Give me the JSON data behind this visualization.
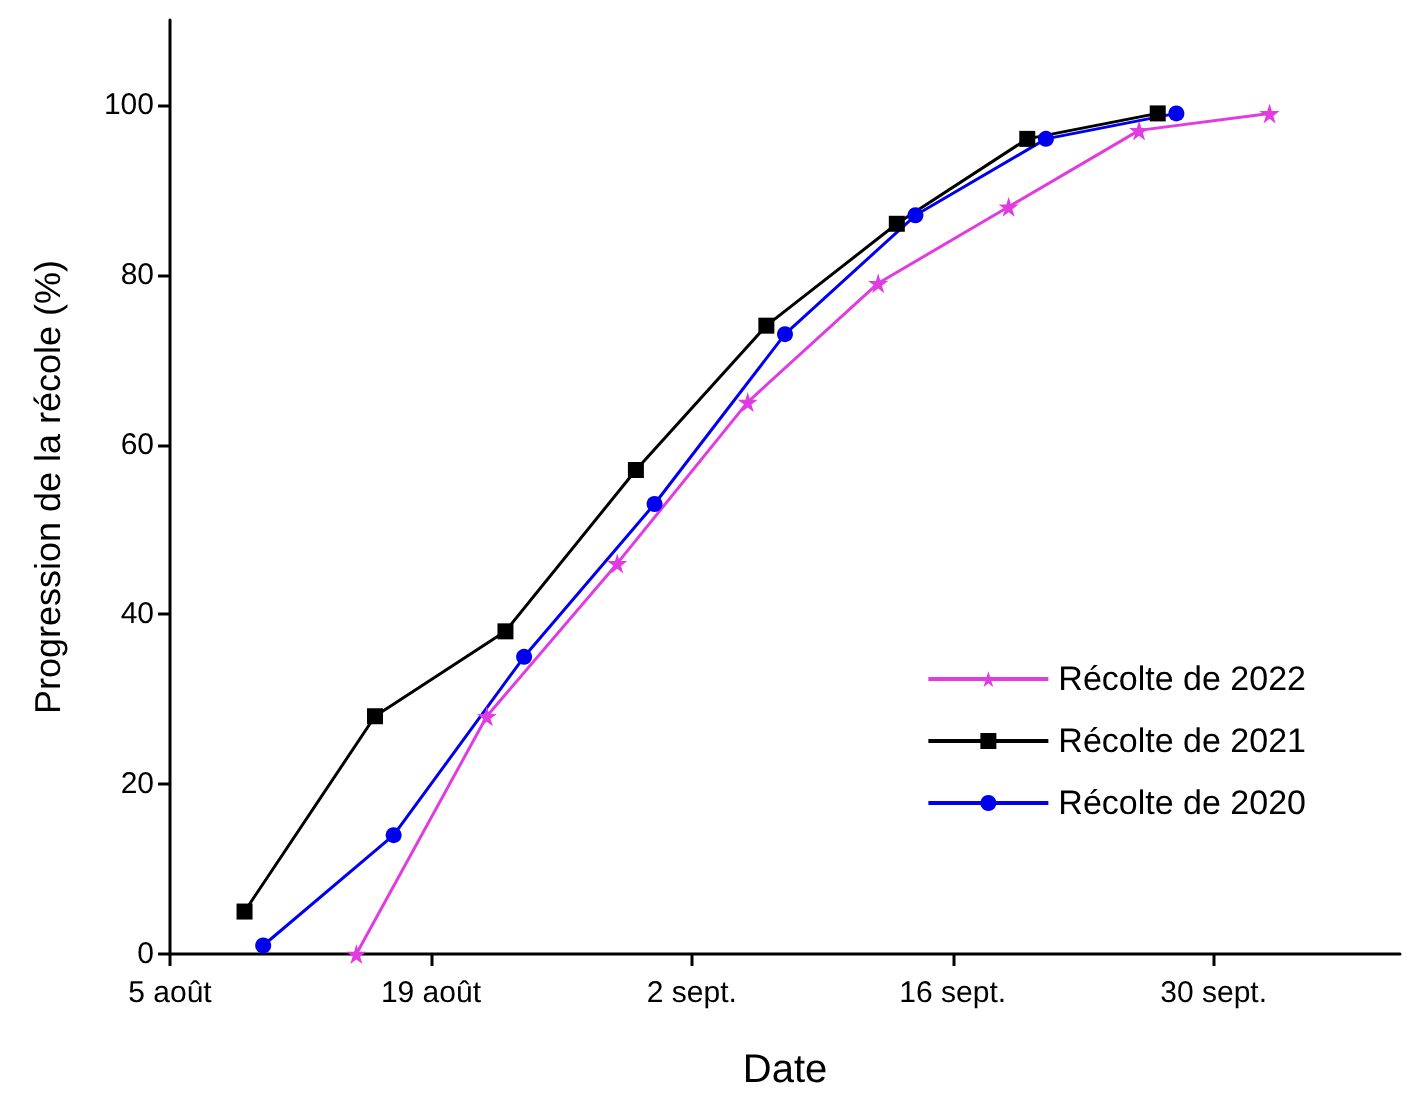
{
  "chart_data": {
    "type": "line",
    "xlabel": "Date",
    "ylabel": "Progression de la récole (%)",
    "xlim": [
      "--08-05",
      "--10-10"
    ],
    "xticks": [
      {
        "value": "--08-05",
        "label": "5 août"
      },
      {
        "value": "--08-19",
        "label": "19 août"
      },
      {
        "value": "--09-02",
        "label": "2 sept."
      },
      {
        "value": "--09-16",
        "label": "16 sept."
      },
      {
        "value": "--09-30",
        "label": "30 sept."
      }
    ],
    "ylim": [
      0,
      110
    ],
    "yticks": [
      0,
      20,
      40,
      60,
      80,
      100
    ],
    "grid": false,
    "legend": "bottom right",
    "series": [
      {
        "name": "Récolte de 2022",
        "color": "#e03ce0",
        "marker": "star",
        "x": [
          "--08-15",
          "--08-22",
          "--08-29",
          "--09-05",
          "--09-12",
          "--09-19",
          "--09-26",
          "--10-03"
        ],
        "values": [
          0,
          28,
          46,
          65,
          79,
          88,
          97,
          99
        ]
      },
      {
        "name": "Récolte de 2021",
        "color": "#000000",
        "marker": "square",
        "x": [
          "--08-09",
          "--08-16",
          "--08-23",
          "--08-30",
          "--09-06",
          "--09-13",
          "--09-20",
          "--09-27"
        ],
        "values": [
          5,
          28,
          38,
          57,
          74,
          86,
          96,
          99
        ]
      },
      {
        "name": "Récolte de 2020",
        "color": "#0000ee",
        "marker": "circle",
        "x": [
          "--08-10",
          "--08-17",
          "--08-24",
          "--08-31",
          "--09-07",
          "--09-14",
          "--09-21",
          "--09-28"
        ],
        "values": [
          1,
          14,
          35,
          53,
          73,
          87,
          96,
          99
        ]
      }
    ]
  }
}
